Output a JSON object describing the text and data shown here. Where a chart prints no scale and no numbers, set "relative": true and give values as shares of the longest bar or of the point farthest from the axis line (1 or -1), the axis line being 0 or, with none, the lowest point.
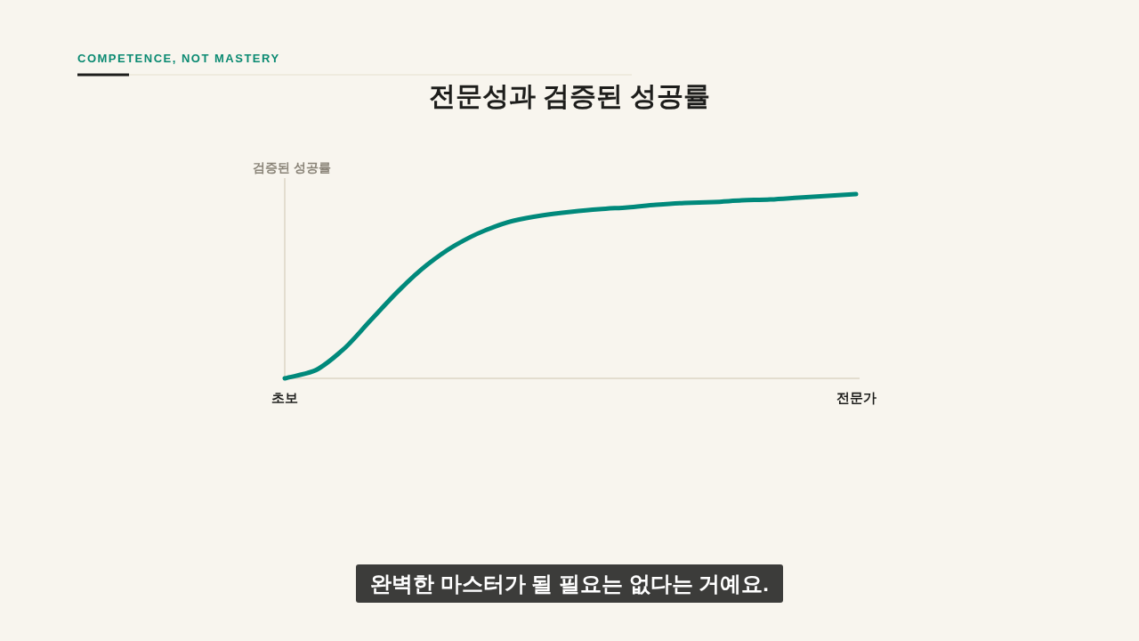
{
  "chart_data": {
    "type": "line",
    "title": "전문성과 검증된 성공률",
    "ylabel": "검증된 성공률",
    "relative": true,
    "categories": [
      "초보",
      null,
      null,
      null,
      null,
      null,
      null,
      null,
      null,
      null,
      null,
      null,
      null,
      null,
      null,
      null,
      null,
      null,
      null,
      null,
      "전문가"
    ],
    "series": [
      {
        "color": "#00897b",
        "values": [
          0,
          0.039,
          0.15,
          0.314,
          0.478,
          0.618,
          0.725,
          0.802,
          0.855,
          0.884,
          0.903,
          0.918,
          0.928,
          0.942,
          0.952,
          0.957,
          0.966,
          0.971,
          0.981,
          0.99,
          1
        ]
      }
    ],
    "annotations": [
      "COMPETENCE, NOT MASTERY",
      "완벽한 마스터가 될 필요는 없다는 거예요."
    ]
  }
}
